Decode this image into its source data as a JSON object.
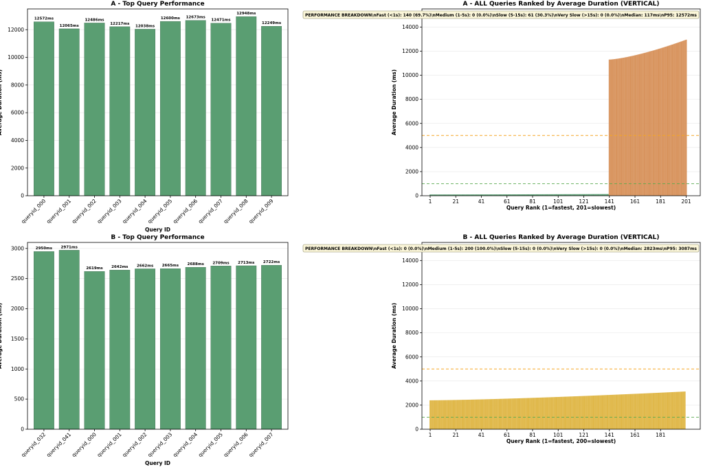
{
  "chart_data": [
    {
      "type": "bar",
      "title": "A - Top Query Performance",
      "xlabel": "Query ID",
      "ylabel": "Average Duration (ms)",
      "ylim": [
        0,
        13500
      ],
      "yticks": [
        0,
        2000,
        4000,
        6000,
        8000,
        10000,
        12000
      ],
      "grid": true,
      "bar_color": "#5a9e72",
      "categories": [
        "queryid_000",
        "queryid_001",
        "queryid_002",
        "queryid_003",
        "queryid_004",
        "queryid_005",
        "queryid_006",
        "queryid_007",
        "queryid_008",
        "queryid_009"
      ],
      "values": [
        12572,
        12065,
        12486,
        12217,
        12038,
        12600,
        12673,
        12471,
        12948,
        12249
      ],
      "data_labels": [
        "12572ms",
        "12065ms",
        "12486ms",
        "12217ms",
        "12038ms",
        "12600ms",
        "12673ms",
        "12471ms",
        "12948ms",
        "12249ms"
      ]
    },
    {
      "type": "bar",
      "title": "A - ALL Queries Ranked by Average Duration (VERTICAL)",
      "xlabel": "Query Rank (1=fastest, 201=slowest)",
      "ylabel": "Average Duration (ms)",
      "ylim": [
        0,
        15500
      ],
      "yticks": [
        0,
        2000,
        4000,
        6000,
        8000,
        10000,
        12000,
        14000
      ],
      "xticks": [
        1,
        21,
        41,
        61,
        81,
        101,
        121,
        141,
        161,
        181,
        201
      ],
      "grid": true,
      "annotation": "PERFORMANCE BREAKDOWN\\nFast (<1s): 140 (69.7%)\\nMedium (1-5s): 0 (0.0%)\\nSlow (5-15s): 61 (30.3%)\\nVery Slow (>15s): 0 (0.0%)\\nMedian: 117ms\\nP95: 12572ms",
      "reference_lines": [
        {
          "value": 1000,
          "color": "#5aaa4e"
        },
        {
          "value": 5000,
          "color": "#f5a623"
        }
      ],
      "groups": [
        {
          "count": 140,
          "from": 100,
          "to": 135,
          "color": "#5a9e72"
        },
        {
          "count": 61,
          "from": 11300,
          "to": 12948,
          "color": "#d8945e"
        }
      ]
    },
    {
      "type": "bar",
      "title": "B - Top Query Performance",
      "xlabel": "Query ID",
      "ylabel": "Average Duration (ms)",
      "ylim": [
        0,
        3100
      ],
      "yticks": [
        0,
        500,
        1000,
        1500,
        2000,
        2500,
        3000
      ],
      "grid": true,
      "bar_color": "#5a9e72",
      "categories": [
        "queryid_032",
        "queryid_041",
        "queryid_000",
        "queryid_001",
        "queryid_002",
        "queryid_003",
        "queryid_004",
        "queryid_005",
        "queryid_006",
        "queryid_007"
      ],
      "values": [
        2950,
        2971,
        2619,
        2642,
        2662,
        2665,
        2688,
        2709,
        2713,
        2722
      ],
      "data_labels": [
        "2950ms",
        "2971ms",
        "2619ms",
        "2642ms",
        "2662ms",
        "2665ms",
        "2688ms",
        "2709ms",
        "2713ms",
        "2722ms"
      ]
    },
    {
      "type": "bar",
      "title": "B - ALL Queries Ranked by Average Duration (VERTICAL)",
      "xlabel": "Query Rank (1=fastest, 200=slowest)",
      "ylabel": "Average Duration (ms)",
      "ylim": [
        0,
        15500
      ],
      "yticks": [
        0,
        2000,
        4000,
        6000,
        8000,
        10000,
        12000,
        14000
      ],
      "xticks": [
        1,
        21,
        41,
        61,
        81,
        101,
        121,
        141,
        161,
        181
      ],
      "grid": true,
      "annotation": "PERFORMANCE BREAKDOWN\\nFast (<1s): 0 (0.0%)\\nMedium (1-5s): 200 (100.0%)\\nSlow (5-15s): 0 (0.0%)\\nVery Slow (>15s): 0 (0.0%)\\nMedian: 2823ms\\nP95: 3087ms",
      "reference_lines": [
        {
          "value": 1000,
          "color": "#5aaa4e"
        },
        {
          "value": 5000,
          "color": "#f5a623"
        }
      ],
      "groups": [
        {
          "count": 200,
          "from": 2400,
          "to": 3130,
          "color": "#e0b84a"
        }
      ]
    }
  ]
}
